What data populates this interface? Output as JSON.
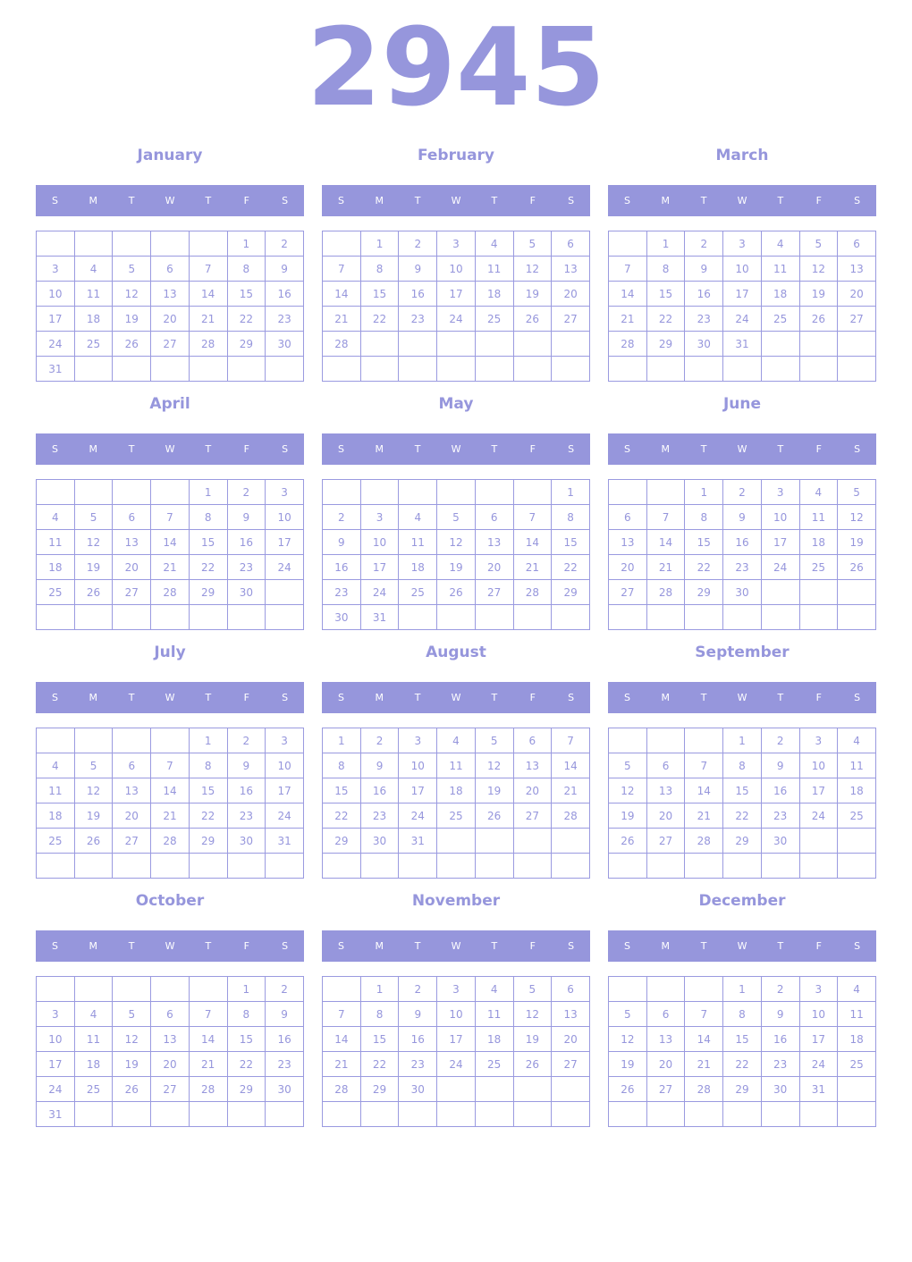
{
  "year": "2945",
  "weekdays": [
    "S",
    "M",
    "T",
    "W",
    "T",
    "F",
    "S"
  ],
  "accent": "#9696dc",
  "months": [
    {
      "name": "January",
      "weeks": [
        [
          "",
          "",
          "",
          "",
          "",
          "1",
          "2"
        ],
        [
          "3",
          "4",
          "5",
          "6",
          "7",
          "8",
          "9"
        ],
        [
          "10",
          "11",
          "12",
          "13",
          "14",
          "15",
          "16"
        ],
        [
          "17",
          "18",
          "19",
          "20",
          "21",
          "22",
          "23"
        ],
        [
          "24",
          "25",
          "26",
          "27",
          "28",
          "29",
          "30"
        ],
        [
          "31",
          "",
          "",
          "",
          "",
          "",
          ""
        ]
      ]
    },
    {
      "name": "February",
      "weeks": [
        [
          "",
          "1",
          "2",
          "3",
          "4",
          "5",
          "6"
        ],
        [
          "7",
          "8",
          "9",
          "10",
          "11",
          "12",
          "13"
        ],
        [
          "14",
          "15",
          "16",
          "17",
          "18",
          "19",
          "20"
        ],
        [
          "21",
          "22",
          "23",
          "24",
          "25",
          "26",
          "27"
        ],
        [
          "28",
          "",
          "",
          "",
          "",
          "",
          ""
        ],
        [
          "",
          "",
          "",
          "",
          "",
          "",
          ""
        ]
      ]
    },
    {
      "name": "March",
      "weeks": [
        [
          "",
          "1",
          "2",
          "3",
          "4",
          "5",
          "6"
        ],
        [
          "7",
          "8",
          "9",
          "10",
          "11",
          "12",
          "13"
        ],
        [
          "14",
          "15",
          "16",
          "17",
          "18",
          "19",
          "20"
        ],
        [
          "21",
          "22",
          "23",
          "24",
          "25",
          "26",
          "27"
        ],
        [
          "28",
          "29",
          "30",
          "31",
          "",
          "",
          ""
        ],
        [
          "",
          "",
          "",
          "",
          "",
          "",
          ""
        ]
      ]
    },
    {
      "name": "April",
      "weeks": [
        [
          "",
          "",
          "",
          "",
          "1",
          "2",
          "3"
        ],
        [
          "4",
          "5",
          "6",
          "7",
          "8",
          "9",
          "10"
        ],
        [
          "11",
          "12",
          "13",
          "14",
          "15",
          "16",
          "17"
        ],
        [
          "18",
          "19",
          "20",
          "21",
          "22",
          "23",
          "24"
        ],
        [
          "25",
          "26",
          "27",
          "28",
          "29",
          "30",
          ""
        ],
        [
          "",
          "",
          "",
          "",
          "",
          "",
          ""
        ]
      ]
    },
    {
      "name": "May",
      "weeks": [
        [
          "",
          "",
          "",
          "",
          "",
          "",
          "1"
        ],
        [
          "2",
          "3",
          "4",
          "5",
          "6",
          "7",
          "8"
        ],
        [
          "9",
          "10",
          "11",
          "12",
          "13",
          "14",
          "15"
        ],
        [
          "16",
          "17",
          "18",
          "19",
          "20",
          "21",
          "22"
        ],
        [
          "23",
          "24",
          "25",
          "26",
          "27",
          "28",
          "29"
        ],
        [
          "30",
          "31",
          "",
          "",
          "",
          "",
          ""
        ]
      ]
    },
    {
      "name": "June",
      "weeks": [
        [
          "",
          "",
          "1",
          "2",
          "3",
          "4",
          "5"
        ],
        [
          "6",
          "7",
          "8",
          "9",
          "10",
          "11",
          "12"
        ],
        [
          "13",
          "14",
          "15",
          "16",
          "17",
          "18",
          "19"
        ],
        [
          "20",
          "21",
          "22",
          "23",
          "24",
          "25",
          "26"
        ],
        [
          "27",
          "28",
          "29",
          "30",
          "",
          "",
          ""
        ],
        [
          "",
          "",
          "",
          "",
          "",
          "",
          ""
        ]
      ]
    },
    {
      "name": "July",
      "weeks": [
        [
          "",
          "",
          "",
          "",
          "1",
          "2",
          "3"
        ],
        [
          "4",
          "5",
          "6",
          "7",
          "8",
          "9",
          "10"
        ],
        [
          "11",
          "12",
          "13",
          "14",
          "15",
          "16",
          "17"
        ],
        [
          "18",
          "19",
          "20",
          "21",
          "22",
          "23",
          "24"
        ],
        [
          "25",
          "26",
          "27",
          "28",
          "29",
          "30",
          "31"
        ],
        [
          "",
          "",
          "",
          "",
          "",
          "",
          ""
        ]
      ]
    },
    {
      "name": "August",
      "weeks": [
        [
          "1",
          "2",
          "3",
          "4",
          "5",
          "6",
          "7"
        ],
        [
          "8",
          "9",
          "10",
          "11",
          "12",
          "13",
          "14"
        ],
        [
          "15",
          "16",
          "17",
          "18",
          "19",
          "20",
          "21"
        ],
        [
          "22",
          "23",
          "24",
          "25",
          "26",
          "27",
          "28"
        ],
        [
          "29",
          "30",
          "31",
          "",
          "",
          "",
          ""
        ],
        [
          "",
          "",
          "",
          "",
          "",
          "",
          ""
        ]
      ]
    },
    {
      "name": "September",
      "weeks": [
        [
          "",
          "",
          "",
          "1",
          "2",
          "3",
          "4"
        ],
        [
          "5",
          "6",
          "7",
          "8",
          "9",
          "10",
          "11"
        ],
        [
          "12",
          "13",
          "14",
          "15",
          "16",
          "17",
          "18"
        ],
        [
          "19",
          "20",
          "21",
          "22",
          "23",
          "24",
          "25"
        ],
        [
          "26",
          "27",
          "28",
          "29",
          "30",
          "",
          ""
        ],
        [
          "",
          "",
          "",
          "",
          "",
          "",
          ""
        ]
      ]
    },
    {
      "name": "October",
      "weeks": [
        [
          "",
          "",
          "",
          "",
          "",
          "1",
          "2"
        ],
        [
          "3",
          "4",
          "5",
          "6",
          "7",
          "8",
          "9"
        ],
        [
          "10",
          "11",
          "12",
          "13",
          "14",
          "15",
          "16"
        ],
        [
          "17",
          "18",
          "19",
          "20",
          "21",
          "22",
          "23"
        ],
        [
          "24",
          "25",
          "26",
          "27",
          "28",
          "29",
          "30"
        ],
        [
          "31",
          "",
          "",
          "",
          "",
          "",
          ""
        ]
      ]
    },
    {
      "name": "November",
      "weeks": [
        [
          "",
          "1",
          "2",
          "3",
          "4",
          "5",
          "6"
        ],
        [
          "7",
          "8",
          "9",
          "10",
          "11",
          "12",
          "13"
        ],
        [
          "14",
          "15",
          "16",
          "17",
          "18",
          "19",
          "20"
        ],
        [
          "21",
          "22",
          "23",
          "24",
          "25",
          "26",
          "27"
        ],
        [
          "28",
          "29",
          "30",
          "",
          "",
          "",
          ""
        ],
        [
          "",
          "",
          "",
          "",
          "",
          "",
          ""
        ]
      ]
    },
    {
      "name": "December",
      "weeks": [
        [
          "",
          "",
          "",
          "1",
          "2",
          "3",
          "4"
        ],
        [
          "5",
          "6",
          "7",
          "8",
          "9",
          "10",
          "11"
        ],
        [
          "12",
          "13",
          "14",
          "15",
          "16",
          "17",
          "18"
        ],
        [
          "19",
          "20",
          "21",
          "22",
          "23",
          "24",
          "25"
        ],
        [
          "26",
          "27",
          "28",
          "29",
          "30",
          "31",
          ""
        ],
        [
          "",
          "",
          "",
          "",
          "",
          "",
          ""
        ]
      ]
    }
  ]
}
